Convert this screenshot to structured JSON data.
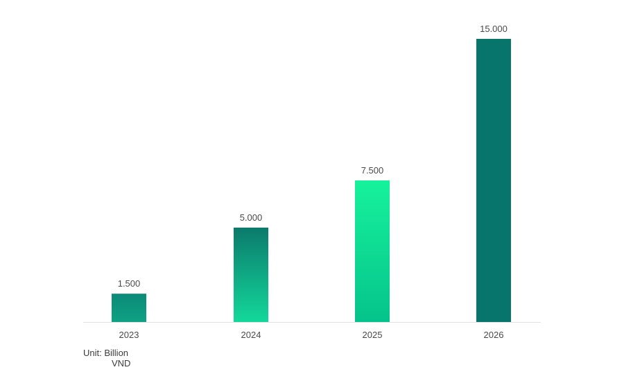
{
  "chart_data": {
    "type": "bar",
    "categories": [
      "2023",
      "2024",
      "2025",
      "2026"
    ],
    "values": [
      1500,
      5000,
      7500,
      15000
    ],
    "value_labels": [
      "1.500",
      "5.000",
      "7.500",
      "15.000"
    ],
    "ylim": [
      0,
      15000
    ],
    "grid": false,
    "legend": "none",
    "unit_label": {
      "line1": "Unit: Billion",
      "line2": "VND"
    },
    "bar_styles": [
      {
        "top": "#0b8a78",
        "bottom": "#0fa184"
      },
      {
        "top": "#0b7a6c",
        "bottom": "#13d89a"
      },
      {
        "top": "#16f29c",
        "bottom": "#05c38b"
      },
      {
        "top": "#08756c",
        "bottom": "#08756c"
      }
    ],
    "axis_color": "#e2e2e2"
  }
}
